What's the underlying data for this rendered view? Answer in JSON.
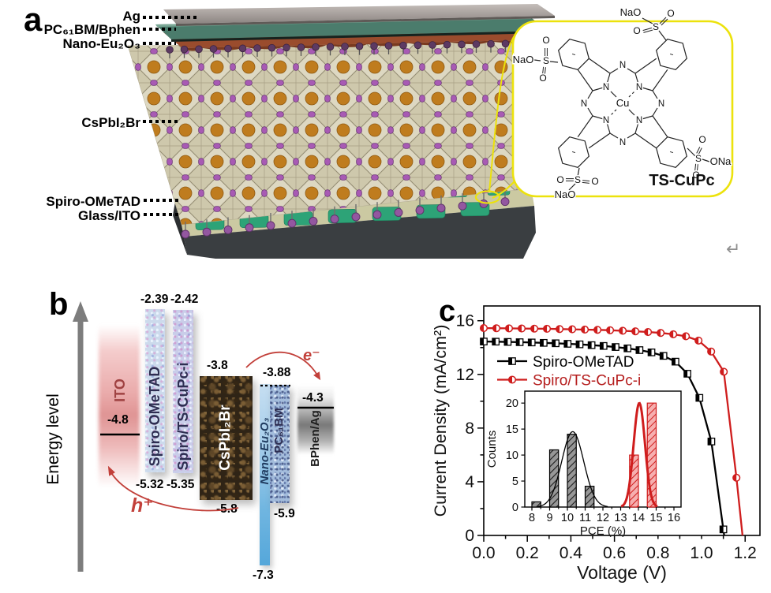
{
  "figure": {
    "return_mark": "↵"
  },
  "panel_a": {
    "label": "a",
    "layer_labels": [
      "Ag",
      "PC₆₁BM/Bphen",
      "Nano-Eu₂O₃",
      "CsPbI₂Br",
      "Spiro-OMeTAD",
      "Glass/ITO"
    ],
    "inset": {
      "title": "TS-CuPc",
      "atoms": {
        "cu": "Cu",
        "n": "N",
        "s": "S",
        "o": "O",
        "nao": "NaO",
        "ona": "ONa"
      }
    }
  },
  "panel_b": {
    "label": "b",
    "axis_label": "Energy level",
    "carriers": {
      "electron": "e⁻",
      "hole": "h⁺"
    },
    "bars": {
      "ito": {
        "name": "ITO",
        "level": "-4.8"
      },
      "spiro": {
        "name": "Spiro-OMeTAD",
        "top": "-2.39",
        "bottom": "-5.32"
      },
      "cupc": {
        "name": "Spiro/TS-CuPc-i",
        "top": "-2.42",
        "bottom": "-5.35"
      },
      "pvk": {
        "name": "CsPbI₂Br",
        "top": "-3.8",
        "bottom": "-5.8"
      },
      "eu2o3": {
        "name": "Nano-Eu₂O₃",
        "bottom": "-7.3"
      },
      "pcbm": {
        "name": "PC₆₁BM",
        "top": "-3.88",
        "bottom": "-5.9"
      },
      "bphen": {
        "name": "BPhen/Ag",
        "level": "-4.3"
      }
    }
  },
  "panel_c": {
    "label": "c"
  },
  "chart_data": [
    {
      "type": "line",
      "title": "",
      "xlabel": "Voltage (V)",
      "ylabel": "Current Density (mA/cm²)",
      "xlim": [
        0,
        1.268
      ],
      "ylim": [
        0,
        17.1
      ],
      "xticks": [
        0.0,
        0.2,
        0.4,
        0.6,
        0.8,
        1.0,
        1.2
      ],
      "xtick_labels": [
        "0.0",
        "0.2",
        "0.4",
        "0.6",
        "0.8",
        "1.0",
        "1.2"
      ],
      "yticks": [
        0,
        4,
        8,
        12,
        16
      ],
      "grid": false,
      "legend_position": "upper-left-inside",
      "series": [
        {
          "name": "Spiro-OMeTAD",
          "color": "#000000",
          "marker": "half-square",
          "x": [
            0,
            0.055,
            0.11,
            0.165,
            0.22,
            0.275,
            0.33,
            0.385,
            0.44,
            0.495,
            0.55,
            0.605,
            0.66,
            0.715,
            0.77,
            0.825,
            0.88,
            0.935,
            0.99,
            1.045,
            1.1,
            1.104
          ],
          "y": [
            14.45,
            14.44,
            14.42,
            14.4,
            14.38,
            14.35,
            14.32,
            14.28,
            14.24,
            14.18,
            14.12,
            14.04,
            13.94,
            13.81,
            13.64,
            13.38,
            12.95,
            12.05,
            10.25,
            7.0,
            0.45,
            0
          ]
        },
        {
          "name": "Spiro/TS-CuPc-i",
          "color": "#cf1d1d",
          "marker": "half-circle",
          "x": [
            0,
            0.058,
            0.116,
            0.174,
            0.232,
            0.29,
            0.348,
            0.406,
            0.464,
            0.522,
            0.58,
            0.638,
            0.696,
            0.754,
            0.812,
            0.87,
            0.928,
            0.986,
            1.044,
            1.102,
            1.16,
            1.188
          ],
          "y": [
            15.45,
            15.44,
            15.43,
            15.42,
            15.41,
            15.4,
            15.38,
            15.36,
            15.34,
            15.32,
            15.29,
            15.25,
            15.21,
            15.16,
            15.09,
            14.99,
            14.84,
            14.52,
            13.7,
            12.2,
            4.3,
            0
          ]
        }
      ]
    },
    {
      "type": "histogram",
      "title": "",
      "xlabel": "PCE (%)",
      "ylabel": "Counts",
      "xlim": [
        7.6,
        16.4
      ],
      "ylim": [
        0,
        22.3
      ],
      "xticks": [
        8,
        9,
        10,
        11,
        12,
        13,
        14,
        15,
        16
      ],
      "yticks": [
        0,
        5,
        10,
        15,
        20
      ],
      "grid": false,
      "series": [
        {
          "name": "Spiro-OMeTAD",
          "color": "#000000",
          "fill": "#979797",
          "bar_width": 0.5,
          "bars": [
            {
              "x": 8.0,
              "count": 1
            },
            {
              "x": 9.0,
              "count": 11
            },
            {
              "x": 10.0,
              "count": 14
            },
            {
              "x": 11.0,
              "count": 4
            }
          ],
          "fit": {
            "mu": 10.3,
            "sigma": 0.62,
            "amp": 14.5
          }
        },
        {
          "name": "Spiro/TS-CuPc-i",
          "color": "#cf1d1d",
          "fill": "#f6afaf",
          "bar_width": 0.5,
          "bars": [
            {
              "x": 13.5,
              "count": 10
            },
            {
              "x": 14.5,
              "count": 20
            }
          ],
          "fit": {
            "mu": 14.05,
            "sigma": 0.32,
            "amp": 20
          }
        }
      ]
    }
  ]
}
